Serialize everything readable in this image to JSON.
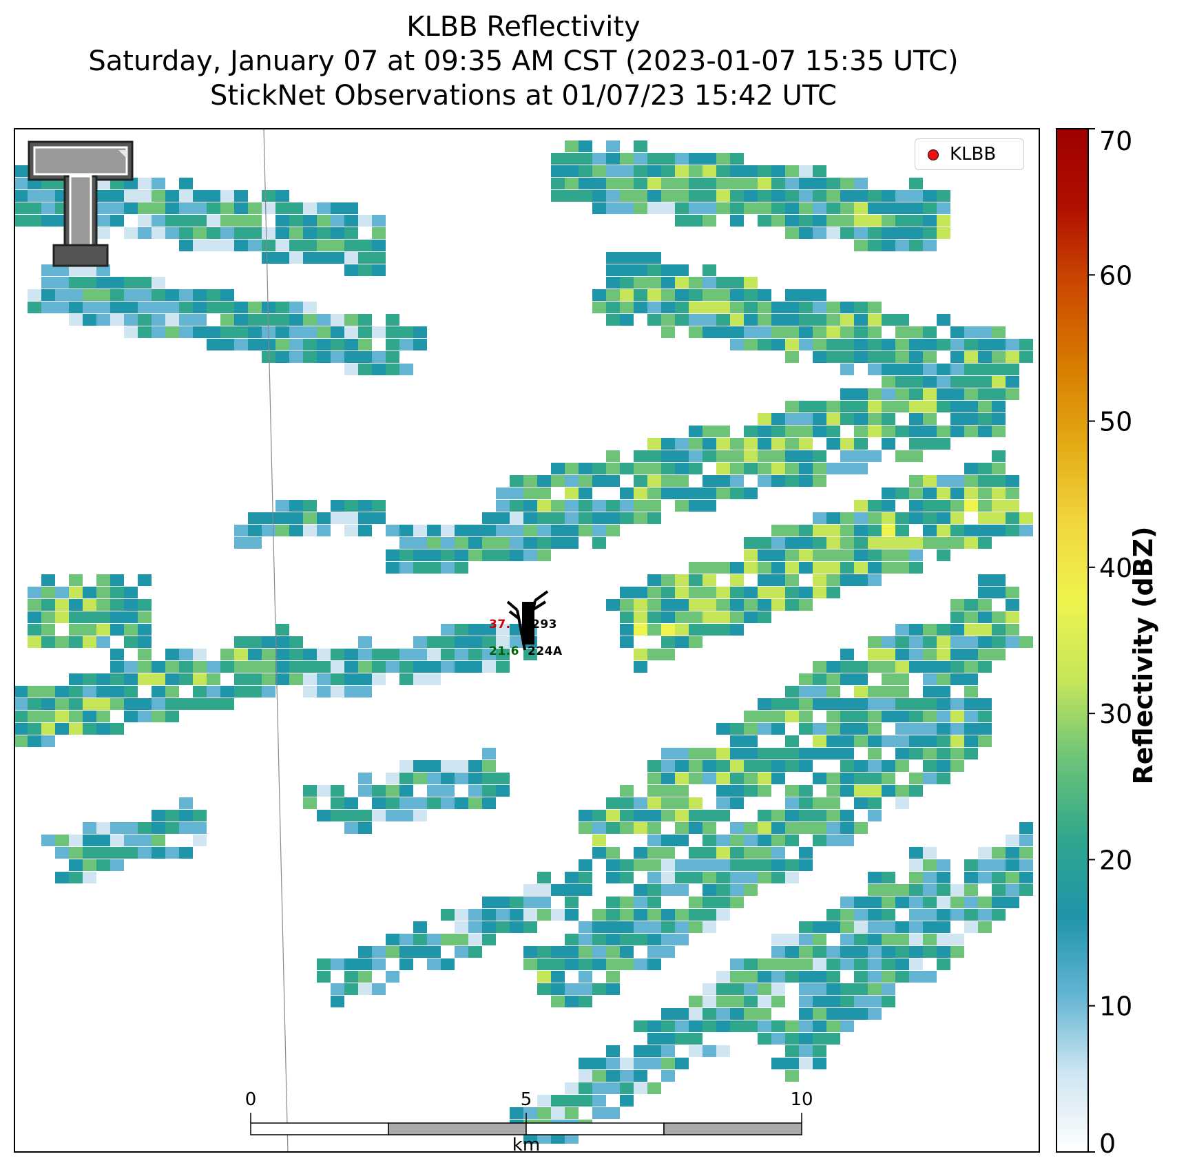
{
  "title": {
    "line1": "KLBB Reflectivity",
    "line2": "Saturday, January 07 at 09:35 AM CST (2023-01-07 15:35 UTC)",
    "line3": "StickNet Observations at 01/07/23 15:42 UTC"
  },
  "legend": {
    "label": "KLBB",
    "marker_color": "#ee1111"
  },
  "colorbar": {
    "label": "Reflectivity (dBZ)",
    "ticks": [
      "0",
      "10",
      "20",
      "30",
      "40",
      "50",
      "60",
      "70"
    ],
    "range": [
      0,
      70
    ],
    "colors": [
      "#ffffff",
      "#cfe6f2",
      "#62b4d2",
      "#1f95aa",
      "#30a78c",
      "#6dc479",
      "#c6e65a",
      "#eef44e",
      "#f2d640",
      "#e3aa14",
      "#d67c00",
      "#cc4a00",
      "#b01000",
      "#9e0000"
    ]
  },
  "scalebar": {
    "labels": [
      "0",
      "5",
      "10"
    ],
    "unit": "km"
  },
  "stations": [
    {
      "id": "293",
      "value": "37.",
      "value_color": "#cc0000"
    },
    {
      "id": "224A",
      "value": "21.6",
      "value_color": "#006400"
    }
  ],
  "logo": {
    "name": "texas-tech-double-t-logo"
  }
}
